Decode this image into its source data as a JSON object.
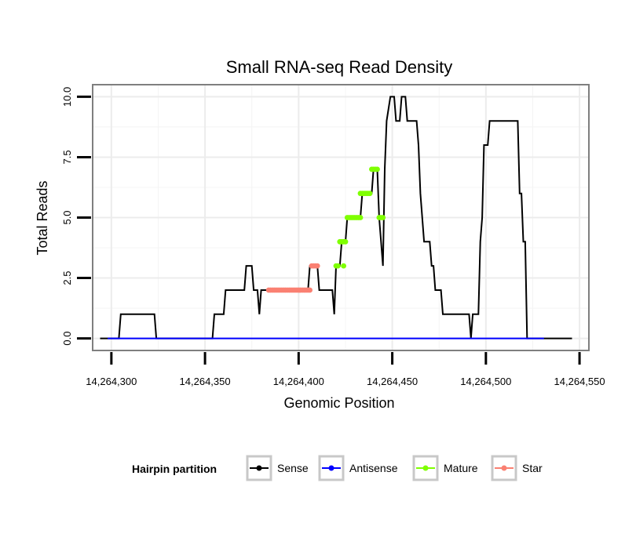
{
  "chart_data": {
    "type": "line",
    "title": "Small RNA-seq Read Density",
    "xlabel": "Genomic Position",
    "ylabel": "Total Reads",
    "xlim": [
      14264290,
      14264555
    ],
    "ylim": [
      -0.5,
      10.5
    ],
    "x_ticks": [
      14264300,
      14264350,
      14264400,
      14264450,
      14264500,
      14264550
    ],
    "x_tick_labels": [
      "14,264,300",
      "14,264,350",
      "14,264,400",
      "14,264,450",
      "14,264,500",
      "14,264,550"
    ],
    "y_ticks": [
      0,
      2.5,
      5,
      7.5,
      10
    ],
    "y_tick_labels": [
      "0.0",
      "2.5",
      "5.0",
      "7.5",
      "10.0"
    ],
    "grid": true,
    "legend": {
      "title": "Hairpin partition",
      "position": "bottom",
      "entries": [
        {
          "label": "Sense",
          "color": "#000000"
        },
        {
          "label": "Antisense",
          "color": "#0000ff"
        },
        {
          "label": "Mature",
          "color": "#7fff00"
        },
        {
          "label": "Star",
          "color": "#fa8072"
        }
      ]
    },
    "series": [
      {
        "name": "Sense",
        "color": "#000000",
        "style": "line",
        "points": [
          [
            14264294,
            0
          ],
          [
            14264304,
            0
          ],
          [
            14264305,
            1
          ],
          [
            14264323,
            1
          ],
          [
            14264324,
            0
          ],
          [
            14264354,
            0
          ],
          [
            14264355,
            1
          ],
          [
            14264360,
            1
          ],
          [
            14264361,
            2
          ],
          [
            14264371,
            2
          ],
          [
            14264372,
            3
          ],
          [
            14264375,
            3
          ],
          [
            14264376,
            2
          ],
          [
            14264378,
            2
          ],
          [
            14264379,
            1
          ],
          [
            14264380,
            2
          ],
          [
            14264405,
            2
          ],
          [
            14264406,
            3
          ],
          [
            14264410,
            3
          ],
          [
            14264411,
            2
          ],
          [
            14264418,
            2
          ],
          [
            14264419,
            1
          ],
          [
            14264420,
            3
          ],
          [
            14264422,
            3
          ],
          [
            14264423,
            4
          ],
          [
            14264425,
            4
          ],
          [
            14264426,
            5
          ],
          [
            14264433,
            5
          ],
          [
            14264434,
            6
          ],
          [
            14264439,
            6
          ],
          [
            14264440,
            7
          ],
          [
            14264442,
            7
          ],
          [
            14264443,
            5
          ],
          [
            14264444,
            4
          ],
          [
            14264445,
            3
          ],
          [
            14264446,
            7
          ],
          [
            14264447,
            9
          ],
          [
            14264449,
            10
          ],
          [
            14264451,
            10
          ],
          [
            14264452,
            9
          ],
          [
            14264454,
            9
          ],
          [
            14264455,
            10
          ],
          [
            14264457,
            10
          ],
          [
            14264458,
            9
          ],
          [
            14264463,
            9
          ],
          [
            14264464,
            8
          ],
          [
            14264465,
            6
          ],
          [
            14264467,
            4
          ],
          [
            14264470,
            4
          ],
          [
            14264471,
            3
          ],
          [
            14264472,
            3
          ],
          [
            14264473,
            2
          ],
          [
            14264476,
            2
          ],
          [
            14264477,
            1
          ],
          [
            14264491,
            1
          ],
          [
            14264492,
            0
          ],
          [
            14264493,
            1
          ],
          [
            14264496,
            1
          ],
          [
            14264497,
            4
          ],
          [
            14264498,
            5
          ],
          [
            14264499,
            8
          ],
          [
            14264501,
            8
          ],
          [
            14264502,
            9
          ],
          [
            14264517,
            9
          ],
          [
            14264518,
            6
          ],
          [
            14264519,
            6
          ],
          [
            14264520,
            4
          ],
          [
            14264521,
            4
          ],
          [
            14264522,
            0
          ],
          [
            14264546,
            0
          ]
        ]
      },
      {
        "name": "Antisense",
        "color": "#0000ff",
        "style": "line",
        "points": [
          [
            14264298,
            0
          ],
          [
            14264531,
            0
          ]
        ]
      },
      {
        "name": "Mature",
        "color": "#7fff00",
        "style": "points",
        "points": [
          [
            14264420,
            3
          ],
          [
            14264421,
            3
          ],
          [
            14264424,
            3
          ],
          [
            14264422,
            4
          ],
          [
            14264423,
            4
          ],
          [
            14264424,
            4
          ],
          [
            14264425,
            4
          ],
          [
            14264426,
            5
          ],
          [
            14264427,
            5
          ],
          [
            14264428,
            5
          ],
          [
            14264429,
            5
          ],
          [
            14264430,
            5
          ],
          [
            14264431,
            5
          ],
          [
            14264432,
            5
          ],
          [
            14264433,
            5
          ],
          [
            14264433,
            6
          ],
          [
            14264434,
            6
          ],
          [
            14264435,
            6
          ],
          [
            14264436,
            6
          ],
          [
            14264437,
            6
          ],
          [
            14264438,
            6
          ],
          [
            14264439,
            7
          ],
          [
            14264440,
            7
          ],
          [
            14264441,
            7
          ],
          [
            14264442,
            7
          ],
          [
            14264443,
            5
          ],
          [
            14264444,
            5
          ],
          [
            14264445,
            5
          ]
        ]
      },
      {
        "name": "Star",
        "color": "#fa8072",
        "style": "points",
        "points": [
          [
            14264384,
            2
          ],
          [
            14264385,
            2
          ],
          [
            14264386,
            2
          ],
          [
            14264387,
            2
          ],
          [
            14264388,
            2
          ],
          [
            14264389,
            2
          ],
          [
            14264390,
            2
          ],
          [
            14264391,
            2
          ],
          [
            14264392,
            2
          ],
          [
            14264393,
            2
          ],
          [
            14264394,
            2
          ],
          [
            14264395,
            2
          ],
          [
            14264396,
            2
          ],
          [
            14264397,
            2
          ],
          [
            14264398,
            2
          ],
          [
            14264399,
            2
          ],
          [
            14264400,
            2
          ],
          [
            14264401,
            2
          ],
          [
            14264402,
            2
          ],
          [
            14264403,
            2
          ],
          [
            14264404,
            2
          ],
          [
            14264405,
            2
          ],
          [
            14264406,
            2
          ],
          [
            14264407,
            3
          ],
          [
            14264408,
            3
          ],
          [
            14264409,
            3
          ],
          [
            14264410,
            3
          ]
        ]
      }
    ]
  }
}
